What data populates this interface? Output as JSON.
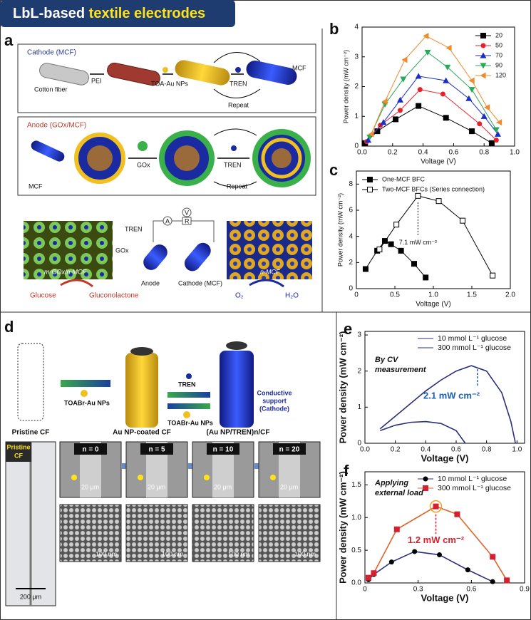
{
  "banner": {
    "text": "LbL-based ",
    "highlight": "textile electrodes"
  },
  "panel_labels": [
    "a",
    "b",
    "c",
    "d",
    "e",
    "f"
  ],
  "panel_a": {
    "cathode_title": "Cathode (MCF)",
    "cotton": "Cotton fiber",
    "pei": "PEI",
    "toa": "TOA-Au NPs",
    "tren1": "TREN",
    "mcf1": "MCF",
    "repeat1": "Repeat",
    "anode_title": "Anode (GOx/MCF)",
    "mcf2": "MCF",
    "gox1": "GOx",
    "tren2": "TREN",
    "repeat2": "Repeat",
    "tren3": "TREN",
    "gox2": "GOx",
    "ammeter": "A",
    "voltmeter": "V",
    "resistor": "R",
    "left_image": "m-GOx/n-MCF",
    "right_image": "n-MCF",
    "anode": "Anode",
    "cathode": "Cathode (MCF)",
    "glucose": "Glucose",
    "gluconolactone": "Gluconolactone",
    "o2": "O₂",
    "h2o": "H₂O"
  },
  "panel_d": {
    "tren": "TREN",
    "toabr1": "TOABr-Au NPs",
    "toabr2": "TOABr-Au NPs",
    "support": [
      "Conductive",
      "support",
      "(Cathode)"
    ],
    "pristine": "Pristine CF",
    "coated": "Au NP-coated CF",
    "multilayer": "(Au NP/TREN)n/CF",
    "inset": [
      "Pristine",
      "CF"
    ],
    "n_labels": [
      "n = 0",
      "n = 5",
      "n = 10",
      "n = 20"
    ],
    "scale_top": [
      "20 μm",
      "20 μm",
      "20 μm",
      "20 μm"
    ],
    "scale_bottom": [
      "100 nm",
      "100 nm",
      "100 nm",
      "100 nm"
    ],
    "scale_left": "200 μm"
  },
  "chart_data": [
    {
      "type": "line",
      "xlabel": "Voltage (V)",
      "ylabel": "Power density (mW cm⁻²)",
      "xlim": [
        0,
        1
      ],
      "ylim": [
        0,
        4
      ],
      "xticks": [
        {
          "value": 0,
          "label": "0.0"
        },
        0.2,
        0.4,
        0.6,
        0.8,
        {
          "value": 1,
          "label": "1.0"
        }
      ],
      "yticks": [
        0,
        1,
        2,
        3,
        4
      ],
      "legend": "upper right",
      "lines": true,
      "series": [
        {
          "name": "20",
          "color": "#000000",
          "marker": "square",
          "x": [
            0.02,
            0.1,
            0.22,
            0.37,
            0.55,
            0.72,
            0.85
          ],
          "values": [
            0.1,
            0.5,
            0.9,
            1.35,
            0.95,
            0.5,
            0.1
          ]
        },
        {
          "name": "50",
          "color": "#e8202a",
          "marker": "circle",
          "x": [
            0.03,
            0.12,
            0.25,
            0.38,
            0.53,
            0.77,
            0.88
          ],
          "values": [
            0.15,
            0.7,
            1.2,
            1.9,
            1.75,
            0.75,
            0.2
          ]
        },
        {
          "name": "70",
          "color": "#1a2fc8",
          "marker": "triangle",
          "x": [
            0.04,
            0.14,
            0.25,
            0.37,
            0.55,
            0.7,
            0.8,
            0.89
          ],
          "values": [
            0.2,
            0.8,
            1.55,
            2.35,
            2.2,
            1.6,
            1.0,
            0.4
          ]
        },
        {
          "name": "90",
          "color": "#2aa85a",
          "marker": "triangle-down",
          "x": [
            0.05,
            0.15,
            0.27,
            0.43,
            0.56,
            0.72,
            0.88
          ],
          "values": [
            0.3,
            1.4,
            2.25,
            3.15,
            2.65,
            1.9,
            0.55
          ]
        },
        {
          "name": "120",
          "color": "#f08a2a",
          "marker": "triangle-left",
          "x": [
            0.06,
            0.15,
            0.28,
            0.42,
            0.57,
            0.72,
            0.82,
            0.9
          ],
          "values": [
            0.4,
            1.5,
            2.9,
            3.7,
            3.3,
            2.2,
            1.3,
            0.8
          ]
        }
      ]
    },
    {
      "type": "line",
      "xlabel": "Voltage (V)",
      "ylabel": "Power density (mW cm⁻²)",
      "xlim": [
        0,
        2
      ],
      "ylim": [
        0,
        9
      ],
      "xticks": [
        0,
        0.5,
        {
          "value": 1,
          "label": "1.0"
        },
        1.5,
        {
          "value": 2,
          "label": "2.0"
        }
      ],
      "yticks": [
        0,
        2,
        4,
        6,
        8
      ],
      "legend": "upper left",
      "lines": true,
      "annotation": "7.1 mW cm⁻²",
      "series": [
        {
          "name": "One-MCF BFC",
          "color": "#000000",
          "marker": "square",
          "x": [
            0.12,
            0.27,
            0.37,
            0.45,
            0.58,
            0.75,
            0.9
          ],
          "values": [
            1.5,
            2.9,
            3.65,
            3.4,
            2.9,
            1.9,
            0.85
          ]
        },
        {
          "name": "Two-MCF BFCs (Series connection)",
          "color": "#000000",
          "marker": "square-open",
          "x": [
            0.3,
            0.52,
            0.8,
            1.07,
            1.38,
            1.77
          ],
          "values": [
            3.0,
            4.9,
            7.1,
            6.7,
            5.2,
            1.0
          ]
        }
      ]
    },
    {
      "type": "line",
      "xlabel": "Voltage (V)",
      "ylabel": "Power density (mW cm⁻²)",
      "xlim": [
        0,
        1.05
      ],
      "ylim": [
        0,
        3.1
      ],
      "xticks": [
        {
          "value": 0,
          "label": "0.0"
        },
        0.2,
        0.4,
        0.6,
        0.8,
        {
          "value": 1,
          "label": "1.0"
        }
      ],
      "yticks": [
        0,
        1,
        2,
        3
      ],
      "legend": "upper right",
      "lines": true,
      "annotation": [
        "By CV",
        "measurement",
        "2.1 mW cm⁻²"
      ],
      "series": [
        {
          "name": "10 mmol L⁻¹ glucose",
          "color": "#2b2f7a",
          "marker": "none",
          "x": [
            0.1,
            0.2,
            0.3,
            0.4,
            0.5,
            0.6,
            0.66
          ],
          "values": [
            0.35,
            0.5,
            0.58,
            0.6,
            0.55,
            0.35,
            0
          ]
        },
        {
          "name": "300 mmol L⁻¹ glucose",
          "color": "#2b2f7a",
          "marker": "none",
          "x": [
            0.1,
            0.2,
            0.3,
            0.4,
            0.5,
            0.6,
            0.7,
            0.8,
            0.9,
            0.96,
            0.99
          ],
          "values": [
            0.4,
            0.75,
            1.1,
            1.45,
            1.75,
            2.0,
            2.15,
            2.0,
            1.4,
            0.6,
            0
          ]
        }
      ]
    },
    {
      "type": "line",
      "xlabel": "Voltage (V)",
      "ylabel": "Power density (mW cm⁻²)",
      "xlim": [
        0,
        0.9
      ],
      "ylim": [
        0,
        1.7
      ],
      "xticks": [
        0,
        0.3,
        0.6,
        0.9
      ],
      "yticks": [
        {
          "value": 0,
          "label": "0.0"
        },
        0.5,
        {
          "value": 1,
          "label": "1.0"
        },
        1.5
      ],
      "legend": "upper right",
      "lines": true,
      "annotation": [
        "Applying",
        "external load",
        "1.2 mW cm⁻²"
      ],
      "series": [
        {
          "name": "10 mmol L⁻¹ glucose",
          "color": "#000000",
          "line_color": "#2b2f7a",
          "marker": "circle",
          "x": [
            0.02,
            0.05,
            0.15,
            0.28,
            0.42,
            0.58,
            0.72
          ],
          "values": [
            0.05,
            0.13,
            0.32,
            0.48,
            0.43,
            0.2,
            0.02
          ]
        },
        {
          "name": "300 mmol L⁻¹ glucose",
          "color": "#d62030",
          "line_color": "#e0642a",
          "marker": "square",
          "x": [
            0.02,
            0.05,
            0.18,
            0.4,
            0.52,
            0.72,
            0.8
          ],
          "values": [
            0.08,
            0.15,
            0.82,
            1.17,
            1.05,
            0.4,
            0.04
          ]
        }
      ]
    }
  ]
}
